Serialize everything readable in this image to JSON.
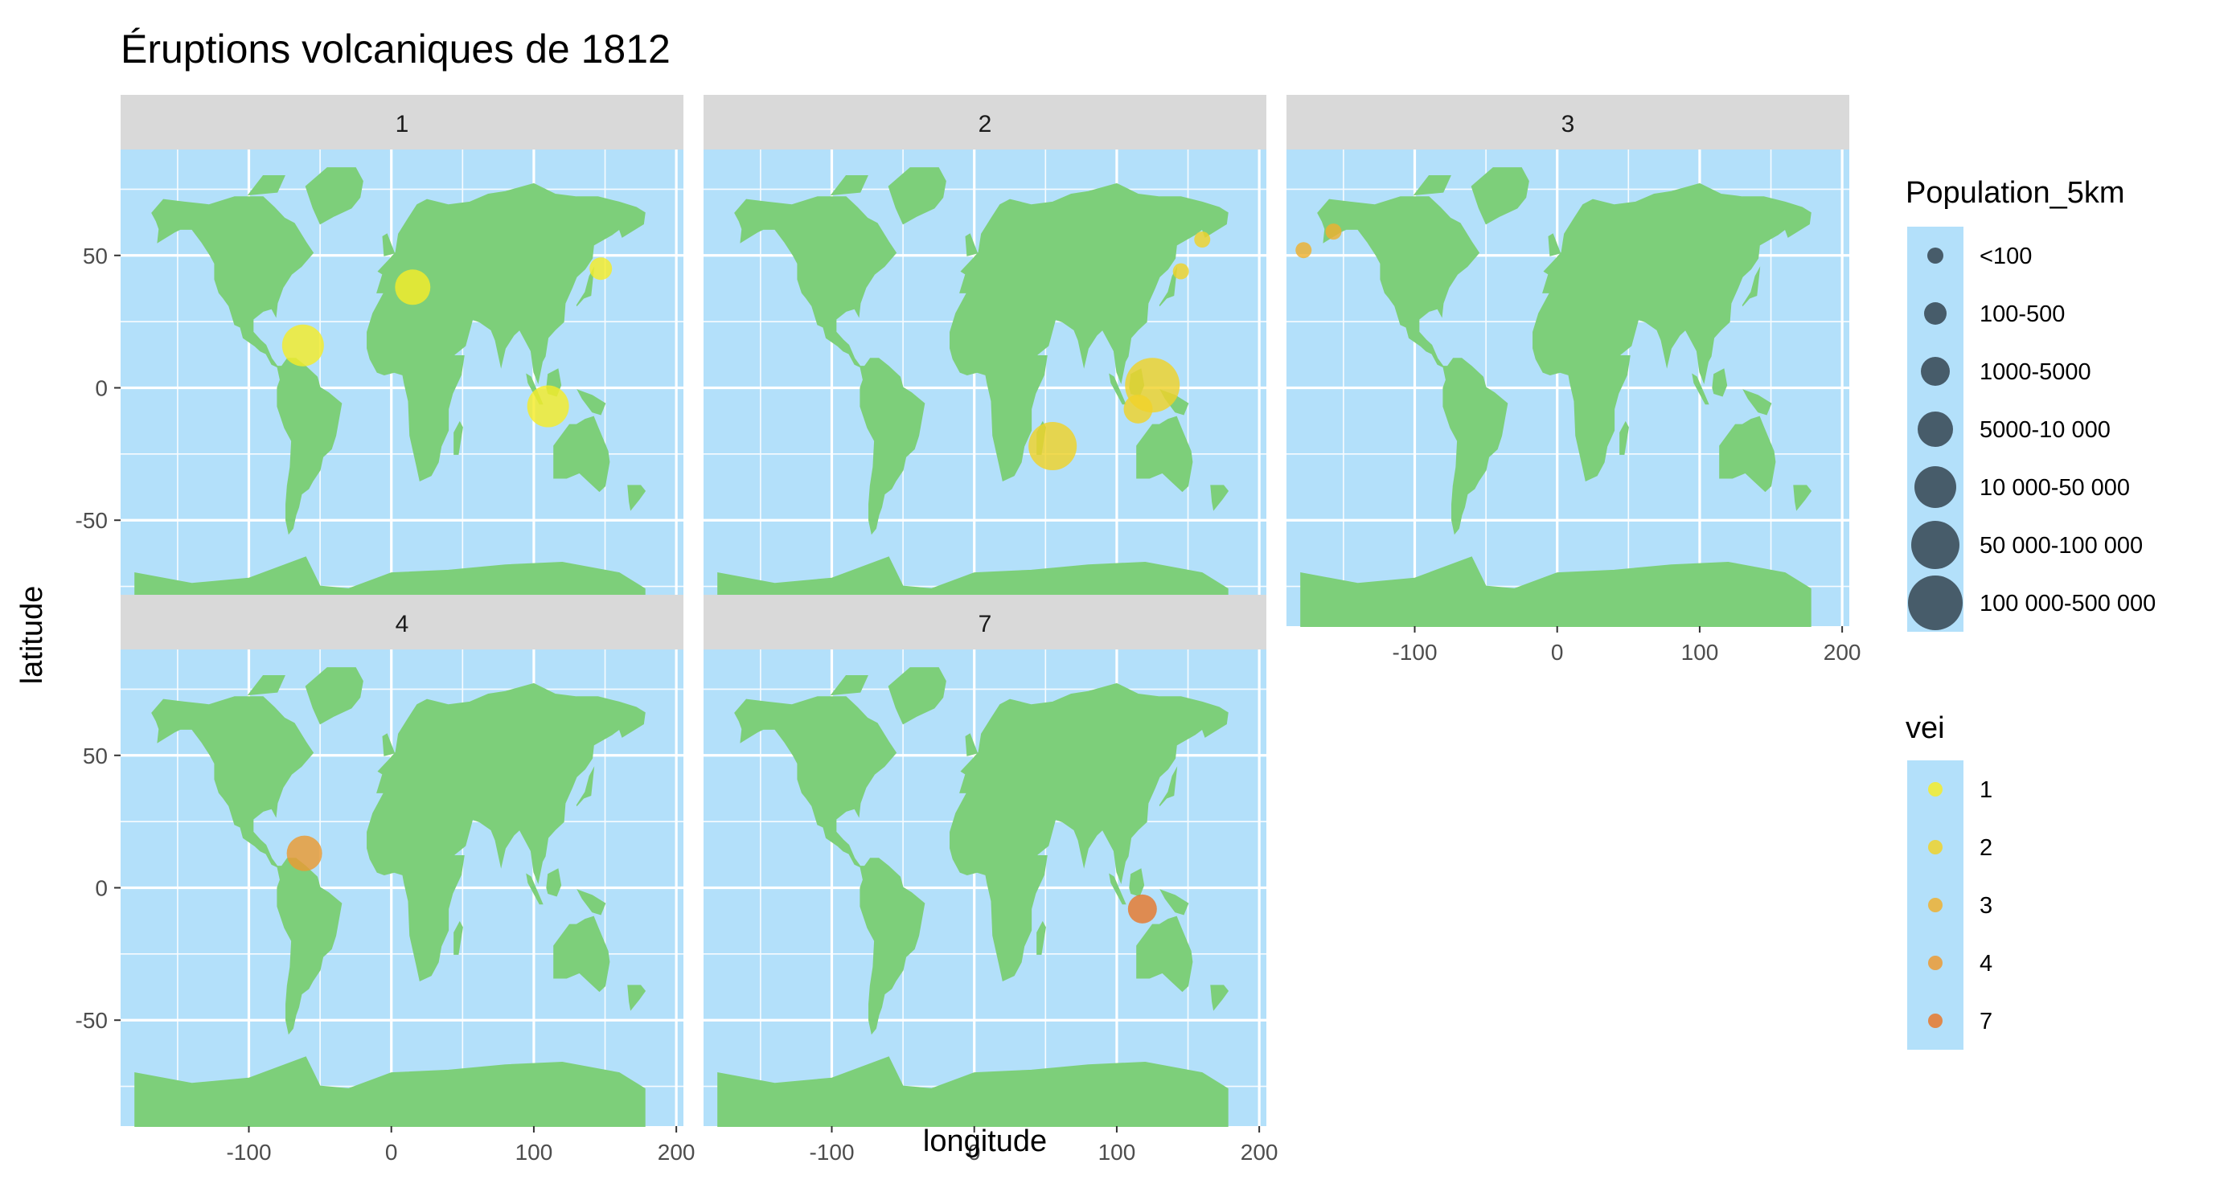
{
  "chart_data": {
    "type": "scatter",
    "title": "Éruptions volcaniques de 1812",
    "xlabel": "longitude",
    "ylabel": "latitude",
    "xlim": [
      -190,
      205
    ],
    "ylim": [
      -90,
      90
    ],
    "x_ticks": [
      -100,
      0,
      100,
      200
    ],
    "x_tick_labels": [
      "-100",
      "0",
      "100",
      "200"
    ],
    "y_ticks": [
      50,
      0,
      -50
    ],
    "y_tick_labels": [
      "50",
      "0",
      "-50"
    ],
    "panels": [
      {
        "label": "1",
        "points": [
          {
            "lon": -62,
            "lat": 16,
            "pop_class": 4,
            "vei": "1"
          },
          {
            "lon": 15,
            "lat": 38,
            "pop_class": 3,
            "vei": "1"
          },
          {
            "lon": 110,
            "lat": -7,
            "pop_class": 4,
            "vei": "1"
          },
          {
            "lon": 147,
            "lat": 45,
            "pop_class": 1,
            "vei": "1"
          }
        ]
      },
      {
        "label": "2",
        "points": [
          {
            "lon": 55,
            "lat": -22,
            "pop_class": 5,
            "vei": "2"
          },
          {
            "lon": 125,
            "lat": 1,
            "pop_class": 6,
            "vei": "2"
          },
          {
            "lon": 115,
            "lat": -8,
            "pop_class": 2,
            "vei": "2"
          },
          {
            "lon": 145,
            "lat": 44,
            "pop_class": 0,
            "vei": "2"
          },
          {
            "lon": 160,
            "lat": 56,
            "pop_class": 0,
            "vei": "2"
          }
        ]
      },
      {
        "label": "3",
        "points": [
          {
            "lon": -178,
            "lat": 52,
            "pop_class": 0,
            "vei": "3"
          },
          {
            "lon": -157,
            "lat": 59,
            "pop_class": 0,
            "vei": "3"
          }
        ]
      },
      {
        "label": "4",
        "points": [
          {
            "lon": -61,
            "lat": 13,
            "pop_class": 3,
            "vei": "4"
          }
        ]
      },
      {
        "label": "7",
        "points": [
          {
            "lon": 118,
            "lat": -8,
            "pop_class": 2,
            "vei": "7"
          }
        ]
      }
    ],
    "legend_size": {
      "title": "Population_5km",
      "labels": [
        "<100",
        "100-500",
        "1000-5000",
        "5000-10 000",
        "10 000-50 000",
        "50 000-100 000",
        "100 000-500 000"
      ]
    },
    "legend_color": {
      "title": "vei",
      "labels": [
        "1",
        "2",
        "3",
        "4",
        "7"
      ],
      "colors": [
        "#f5ec2a",
        "#f0d22a",
        "#eeb030",
        "#ec9a32",
        "#e8782c"
      ]
    },
    "colors": {
      "ocean": "#b3e0fa",
      "land": "#7dcf7a",
      "grid": "#ffffff",
      "strip": "#d9d9d9",
      "legend_key_bg": "#b3e0fa",
      "size_key": "#2f3e4a"
    }
  }
}
